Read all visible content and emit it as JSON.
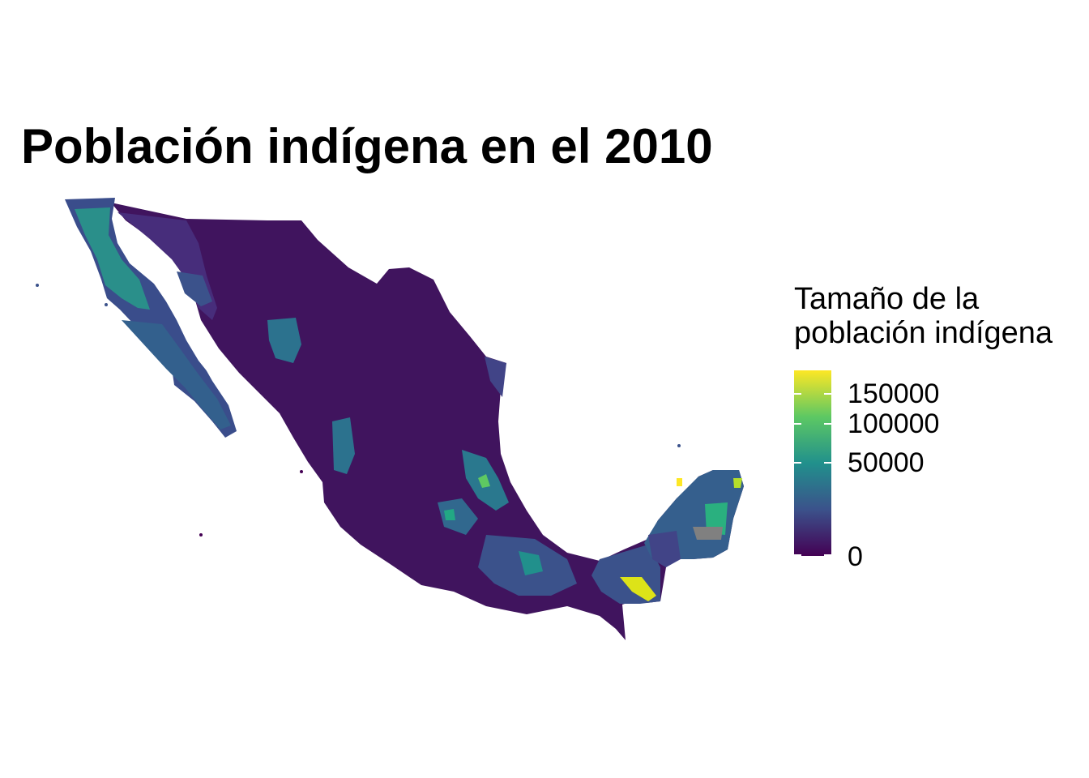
{
  "title": "Población indígena en el 2010",
  "legend": {
    "title_line1": "Tamaño de la",
    "title_line2": "población indígena",
    "ticks": [
      "150000",
      "100000",
      "50000",
      "0"
    ],
    "gradient_colors": [
      "#440154",
      "#3b528b",
      "#21908c",
      "#5dc863",
      "#fde725"
    ]
  },
  "map": {
    "region": "Mexico municipalities",
    "fill_scale": "viridis",
    "missing_color": "#808080"
  }
}
